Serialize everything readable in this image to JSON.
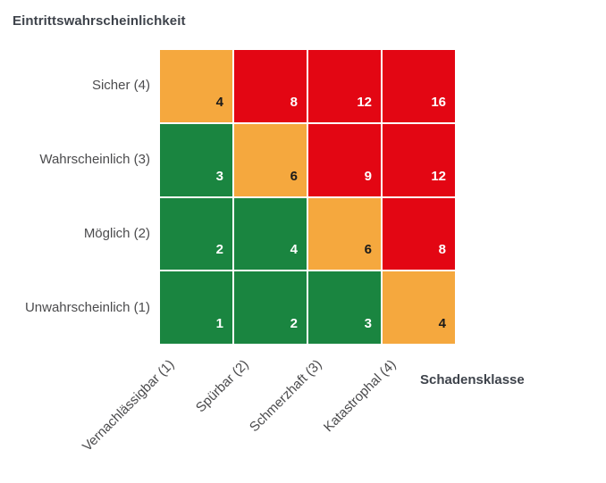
{
  "chart_data": {
    "type": "heatmap",
    "title": "Eintrittswahrscheinlichkeit",
    "x_axis_title": "Schadensklasse",
    "x_categories": [
      "Vernachlässigbar (1)",
      "Spürbar (2)",
      "Schmerzhaft (3)",
      "Katastrophal (4)"
    ],
    "y_categories": [
      "Sicher (4)",
      "Wahrscheinlich (3)",
      "Möglich (2)",
      "Unwahrscheinlich (1)"
    ],
    "rows": [
      {
        "label": "Sicher (4)",
        "values": [
          4,
          8,
          12,
          16
        ],
        "levels": [
          "medium",
          "high",
          "high",
          "high"
        ]
      },
      {
        "label": "Wahrscheinlich (3)",
        "values": [
          3,
          6,
          9,
          12
        ],
        "levels": [
          "low",
          "medium",
          "high",
          "high"
        ]
      },
      {
        "label": "Möglich (2)",
        "values": [
          2,
          4,
          6,
          8
        ],
        "levels": [
          "low",
          "low",
          "medium",
          "high"
        ]
      },
      {
        "label": "Unwahrscheinlich (1)",
        "values": [
          1,
          2,
          3,
          4
        ],
        "levels": [
          "low",
          "low",
          "low",
          "medium"
        ]
      }
    ],
    "colors": {
      "low": "#1A8540",
      "medium": "#F5A83E",
      "high": "#E30613"
    },
    "value_text_colors": {
      "low": "#FFFFFF",
      "medium": "#1A1A1A",
      "high": "#FFFFFF"
    },
    "legend": "none",
    "grid_gap_color": "#FFFFFF",
    "x_tick_label_rotation_deg": -45
  }
}
